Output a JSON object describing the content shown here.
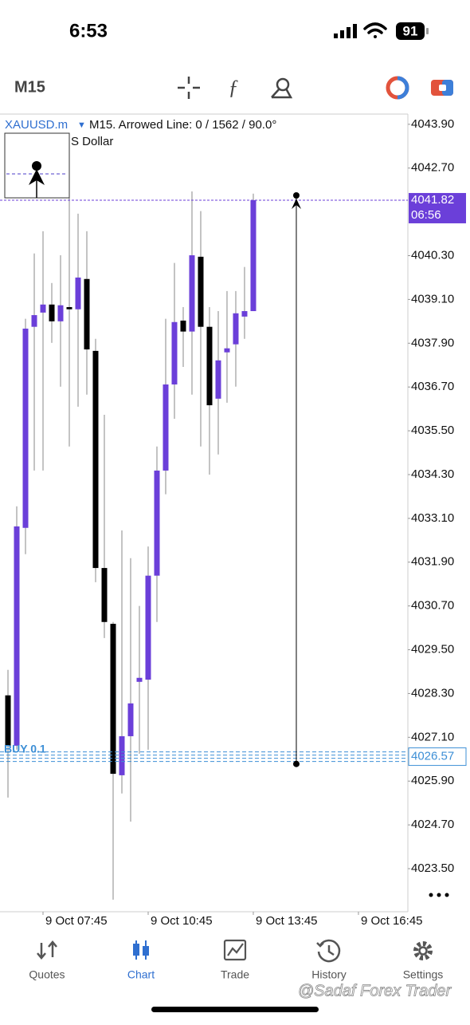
{
  "status_bar": {
    "time": "6:53",
    "battery": "91"
  },
  "toolbar": {
    "timeframe": "M15"
  },
  "chart_data": {
    "type": "candlestick",
    "symbol": "XAUUSD.m",
    "title": "M15. Arrowed Line: 0 / 1562 / 90.0°",
    "subtitle": "S Dollar",
    "up_color": "#6b3fd9",
    "down_color": "#000000",
    "open": [
      4028.25,
      4026.87,
      4032.84,
      4038.35,
      4038.74,
      4038.96,
      4038.5,
      4038.89,
      4038.83,
      4039.66,
      4037.69,
      4031.74,
      4030.21,
      4026.06,
      4027.13,
      4028.62,
      4028.68,
      4031.53,
      4034.41,
      4036.77,
      4038.52,
      4038.22,
      4040.27,
      4038.35,
      4036.38,
      4037.65,
      4037.87,
      4038.63,
      4038.78
    ],
    "high": [
      4028.95,
      4033.43,
      4038.57,
      4040.36,
      4040.97,
      4039.55,
      4040.31,
      4041.89,
      4041.45,
      4040.97,
      4038.02,
      4035.94,
      4030.26,
      4032.77,
      4032.01,
      4030.7,
      4032.33,
      4035.07,
      4038.57,
      4040.1,
      4038.89,
      4042.06,
      4041.52,
      4038.89,
      4038.78,
      4039.33,
      4039.33,
      4039.99,
      4042.0
    ],
    "low": [
      4025.45,
      4026.76,
      4032.12,
      4034.41,
      4034.41,
      4037.91,
      4036.71,
      4035.07,
      4036.16,
      4036.49,
      4031.35,
      4029.82,
      4022.65,
      4025.56,
      4024.79,
      4026.65,
      4026.76,
      4030.26,
      4033.76,
      4035.83,
      4037.25,
      4036.49,
      4035.07,
      4034.3,
      4034.85,
      4036.27,
      4036.71,
      4038.02,
      4038.78
    ],
    "close": [
      4026.87,
      4032.88,
      4038.3,
      4038.67,
      4038.96,
      4038.5,
      4038.94,
      4038.83,
      4039.7,
      4037.73,
      4031.74,
      4030.26,
      4026.1,
      4027.13,
      4028.03,
      4028.73,
      4031.53,
      4034.41,
      4036.77,
      4038.48,
      4038.22,
      4040.31,
      4038.35,
      4036.2,
      4037.43,
      4037.76,
      4038.72,
      4038.78,
      4041.82
    ],
    "xlim": [
      -0.91,
      45.64
    ],
    "xticks": [
      {
        "value": 4,
        "label": "9 Oct 07:45"
      },
      {
        "value": 16,
        "label": "9 Oct 10:45"
      },
      {
        "value": 28,
        "label": "9 Oct 13:45"
      },
      {
        "value": 40,
        "label": "9 Oct 16:45"
      }
    ],
    "ylim": [
      4022.32,
      4044.18
    ],
    "yticks": [
      {
        "value": 4043.9,
        "label": "4043.90"
      },
      {
        "value": 4042.7,
        "label": "4042.70"
      },
      {
        "value": 4040.3,
        "label": "4040.30"
      },
      {
        "value": 4039.1,
        "label": "4039.10"
      },
      {
        "value": 4037.9,
        "label": "4037.90"
      },
      {
        "value": 4036.7,
        "label": "4036.70"
      },
      {
        "value": 4035.5,
        "label": "4035.50"
      },
      {
        "value": 4034.3,
        "label": "4034.30"
      },
      {
        "value": 4033.1,
        "label": "4033.10"
      },
      {
        "value": 4031.9,
        "label": "4031.90"
      },
      {
        "value": 4030.7,
        "label": "4030.70"
      },
      {
        "value": 4029.5,
        "label": "4029.50"
      },
      {
        "value": 4028.3,
        "label": "4028.30"
      },
      {
        "value": 4027.1,
        "label": "4027.10"
      },
      {
        "value": 4025.9,
        "label": "4025.90"
      },
      {
        "value": 4024.7,
        "label": "4024.70"
      },
      {
        "value": 4023.5,
        "label": "4023.50"
      }
    ],
    "current_price": {
      "value": 4041.82,
      "countdown": "06:56",
      "color": "#6b3fd9"
    },
    "order_line": {
      "value": 4026.57,
      "label": "BUY 0.1",
      "color": "#3d8fd6"
    },
    "arrowed_line": {
      "x": 32.91,
      "from": 4026.37,
      "to": 4041.95
    }
  },
  "tabs": [
    "Quotes",
    "Chart",
    "Trade",
    "History",
    "Settings"
  ],
  "watermark": "@Sadaf Forex Trader"
}
